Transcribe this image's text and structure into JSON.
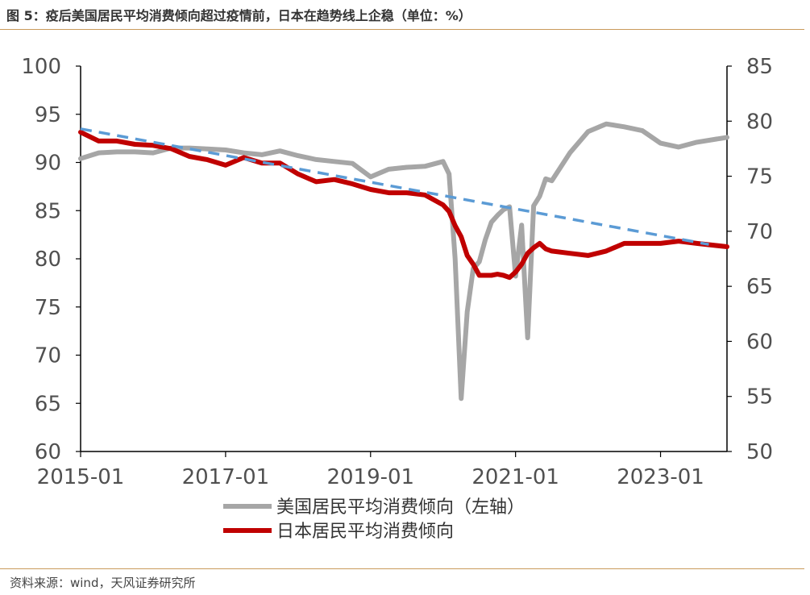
{
  "header": {
    "title": "图 5：疫后美国居民平均消费倾向超过疫情前，日本在趋势线上企稳（单位：%）"
  },
  "footer": {
    "source": "资料来源：wind，天风证券研究所"
  },
  "chart_data": {
    "type": "line",
    "x_axis": {
      "start": "2015-01",
      "end": "2023-12",
      "tick_labels": [
        "2015-01",
        "2017-01",
        "2019-01",
        "2021-01",
        "2023-01"
      ]
    },
    "y_left": {
      "range": [
        60,
        100
      ],
      "ticks": [
        "60",
        "65",
        "70",
        "75",
        "80",
        "85",
        "90",
        "95",
        "100"
      ]
    },
    "y_right": {
      "range": [
        50,
        85
      ],
      "ticks": [
        "50",
        "55",
        "60",
        "65",
        "70",
        "75",
        "80",
        "85"
      ]
    },
    "grid": false,
    "legend_position": "bottom",
    "colors": {
      "us": "#a6a6a6",
      "jp": "#c00000",
      "trend": "#5b9bd5"
    },
    "series": [
      {
        "name": "美国居民平均消费倾向（左轴）",
        "axis": "left",
        "x": [
          "2015-01",
          "2015-04",
          "2015-07",
          "2015-10",
          "2016-01",
          "2016-04",
          "2016-07",
          "2016-10",
          "2017-01",
          "2017-04",
          "2017-07",
          "2017-10",
          "2018-01",
          "2018-04",
          "2018-07",
          "2018-10",
          "2019-01",
          "2019-04",
          "2019-07",
          "2019-10",
          "2020-01",
          "2020-02",
          "2020-03",
          "2020-04",
          "2020-05",
          "2020-06",
          "2020-07",
          "2020-08",
          "2020-09",
          "2020-10",
          "2020-11",
          "2020-12",
          "2021-01",
          "2021-02",
          "2021-03",
          "2021-04",
          "2021-05",
          "2021-06",
          "2021-07",
          "2021-10",
          "2022-01",
          "2022-04",
          "2022-07",
          "2022-10",
          "2023-01",
          "2023-04",
          "2023-07",
          "2023-12"
        ],
        "values": [
          90.4,
          91.0,
          91.1,
          91.1,
          91.0,
          91.5,
          91.5,
          91.4,
          91.3,
          91.0,
          90.8,
          91.2,
          90.7,
          90.3,
          90.1,
          89.9,
          88.5,
          89.3,
          89.5,
          89.6,
          90.1,
          88.8,
          80.0,
          65.5,
          74.5,
          79.0,
          79.7,
          82.0,
          83.8,
          84.5,
          85.1,
          85.4,
          78.2,
          83.5,
          71.8,
          85.5,
          86.5,
          88.3,
          88.1,
          91.0,
          93.2,
          94.0,
          93.7,
          93.3,
          92.0,
          91.6,
          92.1,
          92.6
        ]
      },
      {
        "name": "日本居民平均消费倾向",
        "axis": "right",
        "x": [
          "2015-01",
          "2015-04",
          "2015-07",
          "2015-10",
          "2016-01",
          "2016-04",
          "2016-07",
          "2016-10",
          "2017-01",
          "2017-04",
          "2017-07",
          "2017-10",
          "2018-01",
          "2018-04",
          "2018-07",
          "2018-10",
          "2019-01",
          "2019-04",
          "2019-07",
          "2019-10",
          "2020-01",
          "2020-02",
          "2020-03",
          "2020-04",
          "2020-05",
          "2020-06",
          "2020-07",
          "2020-08",
          "2020-09",
          "2020-10",
          "2020-11",
          "2020-12",
          "2021-01",
          "2021-02",
          "2021-03",
          "2021-04",
          "2021-05",
          "2021-06",
          "2021-07",
          "2021-10",
          "2022-01",
          "2022-04",
          "2022-07",
          "2022-10",
          "2023-01",
          "2023-04",
          "2023-07",
          "2023-12"
        ],
        "values": [
          79.0,
          78.2,
          78.2,
          77.9,
          77.8,
          77.5,
          76.8,
          76.5,
          76.0,
          76.7,
          76.2,
          76.2,
          75.2,
          74.5,
          74.7,
          74.3,
          73.8,
          73.5,
          73.5,
          73.3,
          72.4,
          71.8,
          70.5,
          69.5,
          67.8,
          67.0,
          66.0,
          66.0,
          66.0,
          66.1,
          66.0,
          65.8,
          66.3,
          67.0,
          68.0,
          68.5,
          68.9,
          68.4,
          68.2,
          68.0,
          67.8,
          68.2,
          68.9,
          68.9,
          68.9,
          69.1,
          68.9,
          68.6
        ]
      },
      {
        "axis": "right",
        "style": "dashed",
        "x": [
          "2015-01",
          "2023-09"
        ],
        "values": [
          79.3,
          68.8
        ]
      }
    ],
    "title": "",
    "xlabel": "",
    "ylabel": ""
  }
}
